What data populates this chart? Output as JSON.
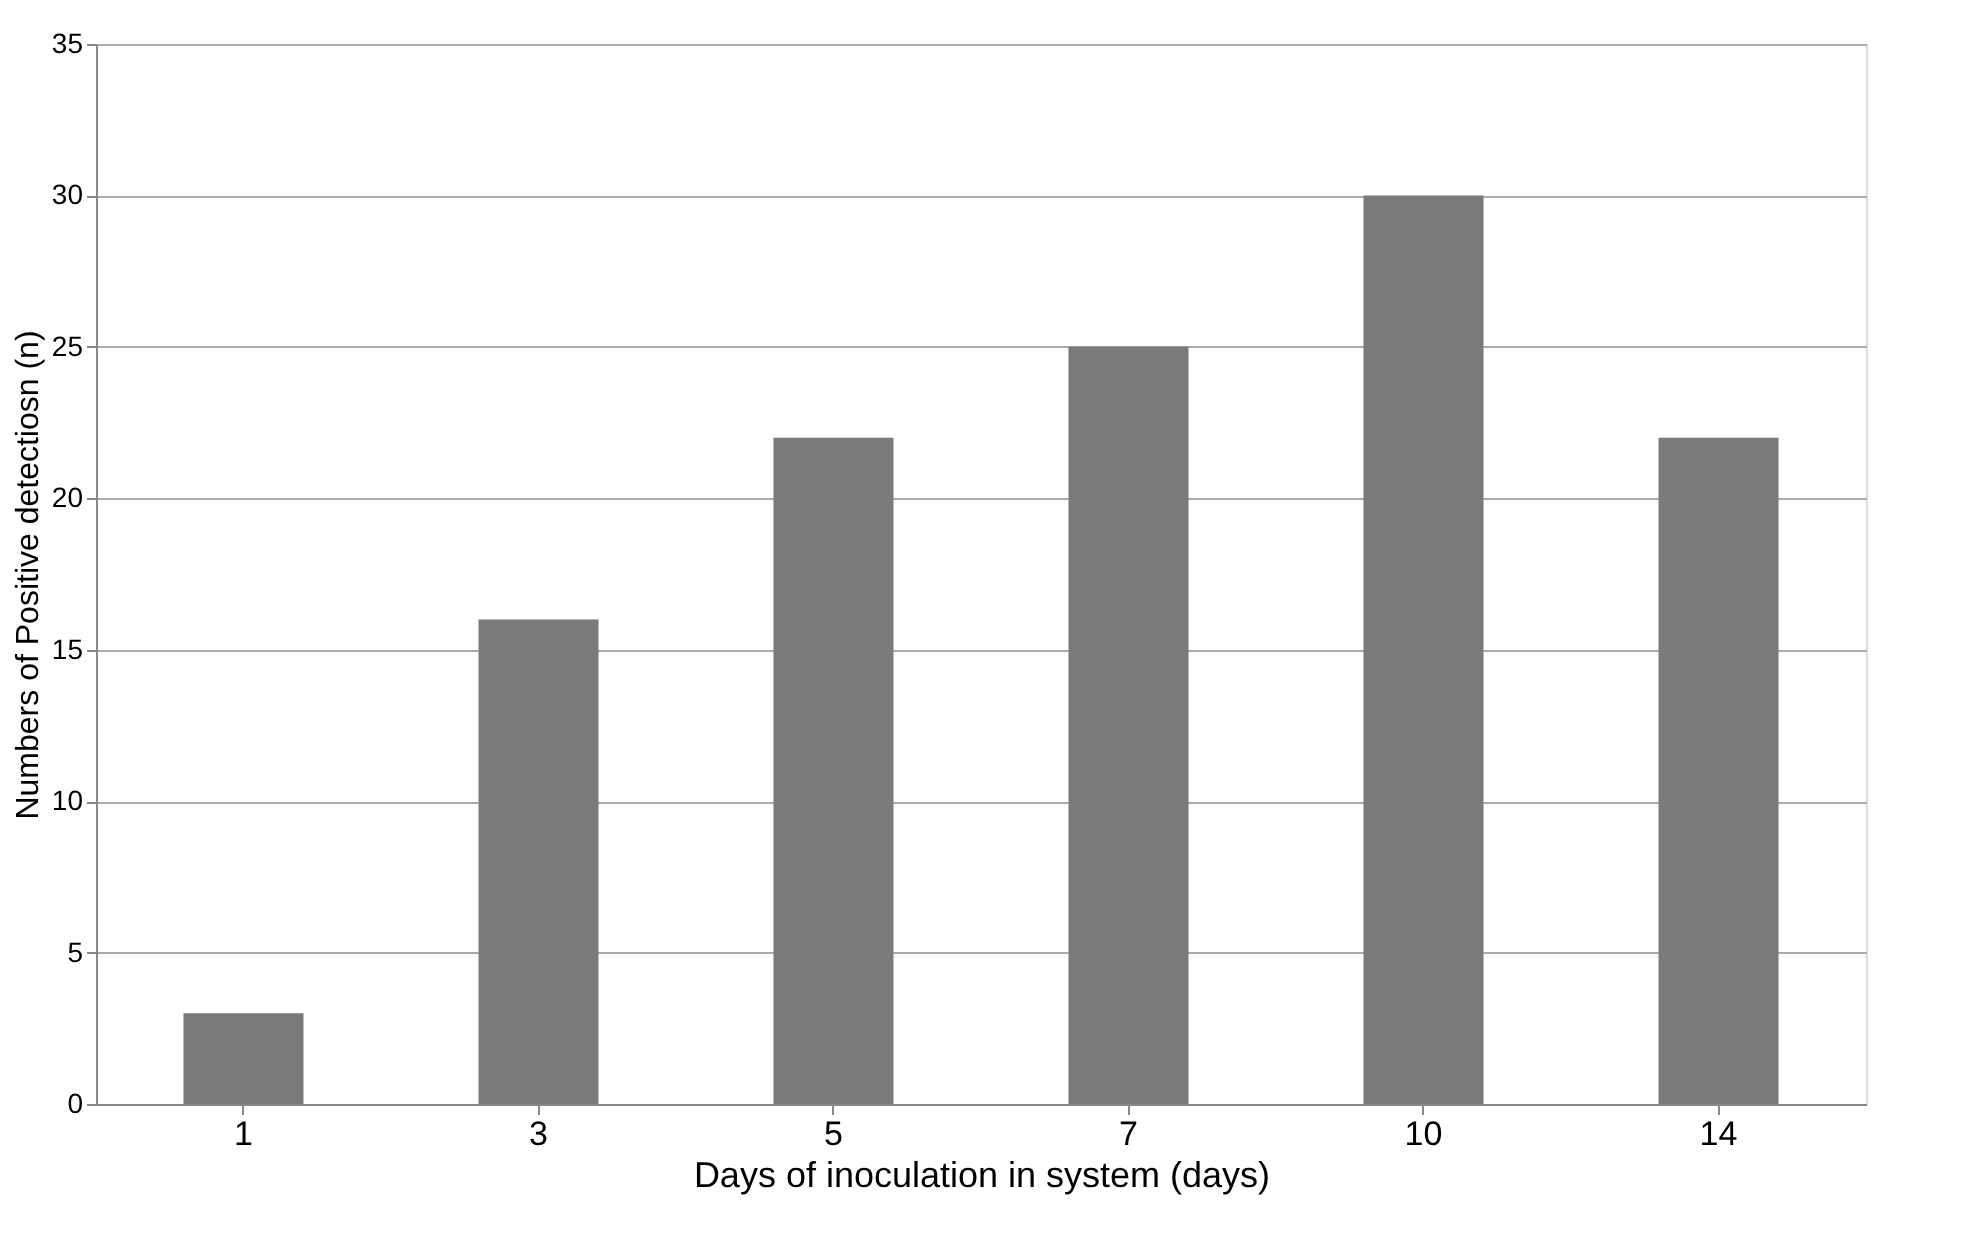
{
  "chart_data": {
    "type": "bar",
    "xlabel": "Days of inoculation in system (days)",
    "ylabel": "Numbers of Positive detectiosn (n)",
    "categories": [
      "1",
      "3",
      "5",
      "7",
      "10",
      "14"
    ],
    "values": [
      3,
      16,
      22,
      25,
      30,
      22
    ],
    "color": "#7a7a7a",
    "ylim": [
      0,
      35
    ],
    "yticks": [
      0,
      5,
      10,
      15,
      20,
      25,
      30,
      35
    ],
    "grid": "y"
  }
}
